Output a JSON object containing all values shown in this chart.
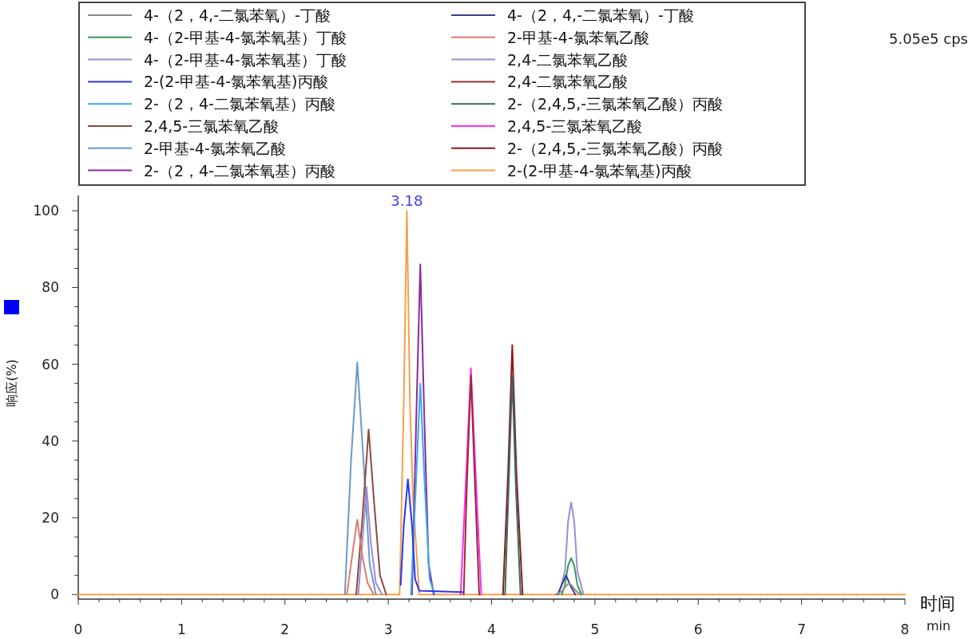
{
  "chart_data": {
    "type": "line",
    "xlabel": "时间",
    "ylabel": "响应(%)",
    "annotations": [
      "5.05e5 cps",
      {
        "text": "3.18",
        "x": 3.18,
        "y": 100
      },
      "min"
    ],
    "xlim": [
      0,
      8
    ],
    "ylim": [
      -1.2,
      104
    ],
    "xticks": [
      0,
      {
        "value": 0.2,
        "label": null
      },
      {
        "value": 0.4,
        "label": null
      },
      {
        "value": 0.6,
        "label": null
      },
      {
        "value": 0.8,
        "label": null
      },
      1,
      {
        "value": 1.2,
        "label": null
      },
      {
        "value": 1.4,
        "label": null
      },
      {
        "value": 1.6,
        "label": null
      },
      {
        "value": 1.8,
        "label": null
      },
      2,
      {
        "value": 2.2,
        "label": null
      },
      {
        "value": 2.4,
        "label": null
      },
      {
        "value": 2.6,
        "label": null
      },
      {
        "value": 2.8,
        "label": null
      },
      3,
      {
        "value": 3.2,
        "label": null
      },
      {
        "value": 3.4,
        "label": null
      },
      {
        "value": 3.6,
        "label": null
      },
      {
        "value": 3.8,
        "label": null
      },
      4,
      {
        "value": 4.2,
        "label": null
      },
      {
        "value": 4.4,
        "label": null
      },
      {
        "value": 4.6,
        "label": null
      },
      {
        "value": 4.8,
        "label": null
      },
      5,
      {
        "value": 5.2,
        "label": null
      },
      {
        "value": 5.4,
        "label": null
      },
      {
        "value": 5.6,
        "label": null
      },
      {
        "value": 5.8,
        "label": null
      },
      6,
      {
        "value": 6.2,
        "label": null
      },
      {
        "value": 6.4,
        "label": null
      },
      {
        "value": 6.6,
        "label": null
      },
      {
        "value": 6.8,
        "label": null
      },
      7,
      {
        "value": 7.2,
        "label": null
      },
      {
        "value": 7.4,
        "label": null
      },
      {
        "value": 7.6,
        "label": null
      },
      {
        "value": 7.8,
        "label": null
      },
      8
    ],
    "yticks": [
      0,
      {
        "value": 5,
        "label": null
      },
      {
        "value": 10,
        "label": null
      },
      {
        "value": 15,
        "label": null
      },
      20,
      {
        "value": 25,
        "label": null
      },
      {
        "value": 30,
        "label": null
      },
      {
        "value": 35,
        "label": null
      },
      40,
      {
        "value": 45,
        "label": null
      },
      {
        "value": 50,
        "label": null
      },
      {
        "value": 55,
        "label": null
      },
      60,
      {
        "value": 65,
        "label": null
      },
      {
        "value": 70,
        "label": null
      },
      {
        "value": 75,
        "label": null
      },
      80,
      {
        "value": 85,
        "label": null
      },
      {
        "value": 90,
        "label": null
      },
      {
        "value": 95,
        "label": null
      },
      100
    ],
    "grid": false,
    "legend": "top",
    "marker": "none",
    "line_style": "solid",
    "series": [
      {
        "name": "4-（2，4,-二氯苯氧）-丁酸",
        "color": "#8c8c8c",
        "x": [
          4.62,
          4.68,
          4.72,
          4.75,
          4.78,
          4.82,
          4.86
        ],
        "values": [
          0,
          0.8,
          2.2,
          3,
          2.2,
          0.8,
          0
        ]
      },
      {
        "name": "4-（2，4,-二氯苯氧）-丁酸",
        "color": "#3a3a90",
        "x": [
          4.64,
          4.68,
          4.72,
          4.76,
          4.81
        ],
        "values": [
          0,
          2.5,
          5,
          2.5,
          0
        ]
      },
      {
        "name": "4-（2-甲基-4-氯苯氧基）丁酸",
        "color": "#3a9a5a",
        "x": [
          4.68,
          4.71,
          4.74,
          4.77,
          4.8,
          4.83,
          4.87
        ],
        "values": [
          0,
          2.5,
          7.5,
          9.5,
          7.5,
          2.5,
          0
        ]
      },
      {
        "name": "2-甲基-4-氯苯氧乙酸",
        "color": "#e07a6a",
        "x": [
          2.6,
          2.65,
          2.7,
          2.75,
          2.8,
          2.86
        ],
        "values": [
          0,
          10,
          19.5,
          10,
          3,
          0
        ]
      },
      {
        "name": "4-（2-甲基-4-氯苯氧基）丁酸",
        "color": "#9b8fd8",
        "x": [
          4.65,
          4.71,
          4.74,
          4.77,
          4.8,
          4.83,
          4.89
        ],
        "values": [
          0,
          6,
          19,
          24,
          19,
          6,
          0
        ]
      },
      {
        "name": "2,4-二氯苯氧乙酸",
        "color": "#a08ad0",
        "x": [
          2.71,
          2.75,
          2.79,
          2.83,
          2.88,
          2.94
        ],
        "values": [
          0,
          14,
          28,
          14,
          3,
          0
        ]
      },
      {
        "name": "2-(2-甲基-4-氯苯氧基)丙酸",
        "color": "#2b35e8",
        "x": [
          3.12,
          3.15,
          3.19,
          3.23,
          3.26,
          3.3,
          3.72
        ],
        "values": [
          2.5,
          18,
          30,
          18,
          4,
          1,
          0.6
        ]
      },
      {
        "name": "2,4-二氯苯氧乙酸",
        "color": "#9a2a35",
        "x": [
          3.73,
          3.76,
          3.8,
          3.84,
          3.88
        ],
        "values": [
          0,
          28,
          57,
          28,
          0
        ]
      },
      {
        "name": "2-（2，4-二氯苯氧基）丙酸",
        "color": "#3aa7f0",
        "x": [
          3.22,
          3.27,
          3.31,
          3.35,
          3.4,
          3.45
        ],
        "values": [
          0,
          30,
          55,
          30,
          4,
          0
        ]
      },
      {
        "name": "2-（2,4,5,-三氯苯氧乙酸）丙酸",
        "color": "#3f6a60",
        "x": [
          4.13,
          4.165,
          4.2,
          4.235,
          4.28
        ],
        "values": [
          0,
          28,
          57,
          28,
          0
        ]
      },
      {
        "name": "2,4,5-三氯苯氧乙酸",
        "color": "#8b4a44",
        "x": [
          2.69,
          2.75,
          2.81,
          2.86,
          2.92,
          2.98
        ],
        "values": [
          0,
          20,
          43,
          25,
          5,
          0
        ]
      },
      {
        "name": "2,4,5-三氯苯氧乙酸",
        "color": "#ff2ef0",
        "x": [
          3.7,
          3.75,
          3.8,
          3.85,
          3.9
        ],
        "values": [
          0,
          29,
          59,
          29,
          0
        ]
      },
      {
        "name": "2-甲基-4-氯苯氧乙酸",
        "color": "#6a9ac8",
        "x": [
          2.58,
          2.64,
          2.7,
          2.76,
          2.82,
          2.88
        ],
        "values": [
          0,
          35,
          60.5,
          35,
          8,
          0
        ]
      },
      {
        "name": "2-（2,4,5,-三氯苯氧乙酸）丙酸",
        "color": "#8a1a1a",
        "x": [
          4.11,
          4.16,
          4.2,
          4.24,
          4.3
        ],
        "values": [
          0,
          32,
          65,
          32,
          0
        ]
      },
      {
        "name": "2-（2，4-二氯苯氧基）丙酸",
        "color": "#8a2a9a",
        "x": [
          3.23,
          3.27,
          3.31,
          3.35,
          3.39,
          3.44
        ],
        "values": [
          0,
          45,
          86,
          45,
          8,
          0
        ]
      },
      {
        "name": "2-(2-甲基-4-氯苯氧基)丙酸",
        "color": "#f5a04a",
        "x": [
          0,
          3.11,
          3.15,
          3.18,
          3.21,
          3.24,
          3.3,
          8
        ],
        "values": [
          0,
          0,
          50,
          100,
          50,
          25,
          0,
          0
        ]
      }
    ]
  }
}
